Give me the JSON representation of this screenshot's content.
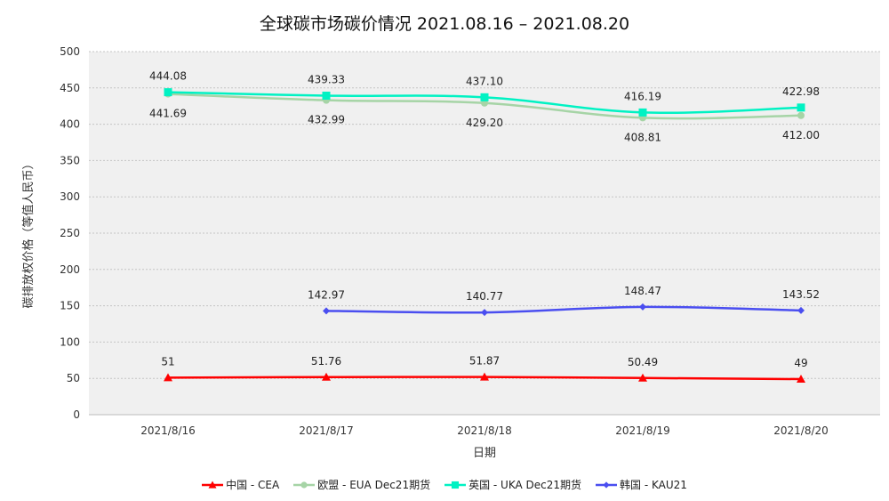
{
  "chart_data": {
    "type": "line",
    "title": "全球碳市场碳价情况 2021.08.16 – 2021.08.20",
    "xlabel": "日期",
    "ylabel": "碳排放权价格（等值人民币）",
    "categories": [
      "2021/8/16",
      "2021/8/17",
      "2021/8/18",
      "2021/8/19",
      "2021/8/20"
    ],
    "ylim": [
      0,
      500
    ],
    "yticks": [
      0,
      50,
      100,
      150,
      200,
      250,
      300,
      350,
      400,
      450,
      500
    ],
    "grid": true,
    "legend_position": "bottom",
    "series": [
      {
        "name": "中国 - CEA",
        "values": [
          51,
          51.76,
          51.87,
          50.49,
          49
        ],
        "labels": [
          "51",
          "51.76",
          "51.87",
          "50.49",
          "49"
        ],
        "color": "#ff0000",
        "marker": "triangle",
        "label_pos": "above"
      },
      {
        "name": "欧盟 - EUA Dec21期货",
        "values": [
          441.69,
          432.99,
          429.2,
          408.81,
          412.0
        ],
        "labels": [
          "441.69",
          "432.99",
          "429.20",
          "408.81",
          "412.00"
        ],
        "color": "#a6d4a6",
        "marker": "circle",
        "label_pos": "below"
      },
      {
        "name": "英国 - UKA Dec21期货",
        "values": [
          444.08,
          439.33,
          437.1,
          416.19,
          422.98
        ],
        "labels": [
          "444.08",
          "439.33",
          "437.10",
          "416.19",
          "422.98"
        ],
        "color": "#00f2c3",
        "marker": "square",
        "label_pos": "above"
      },
      {
        "name": "韩国 - KAU21",
        "values": [
          null,
          142.97,
          140.77,
          148.47,
          143.52
        ],
        "labels": [
          "",
          "142.97",
          "140.77",
          "148.47",
          "143.52"
        ],
        "color": "#4a4ef0",
        "marker": "diamond",
        "label_pos": "above"
      }
    ]
  }
}
